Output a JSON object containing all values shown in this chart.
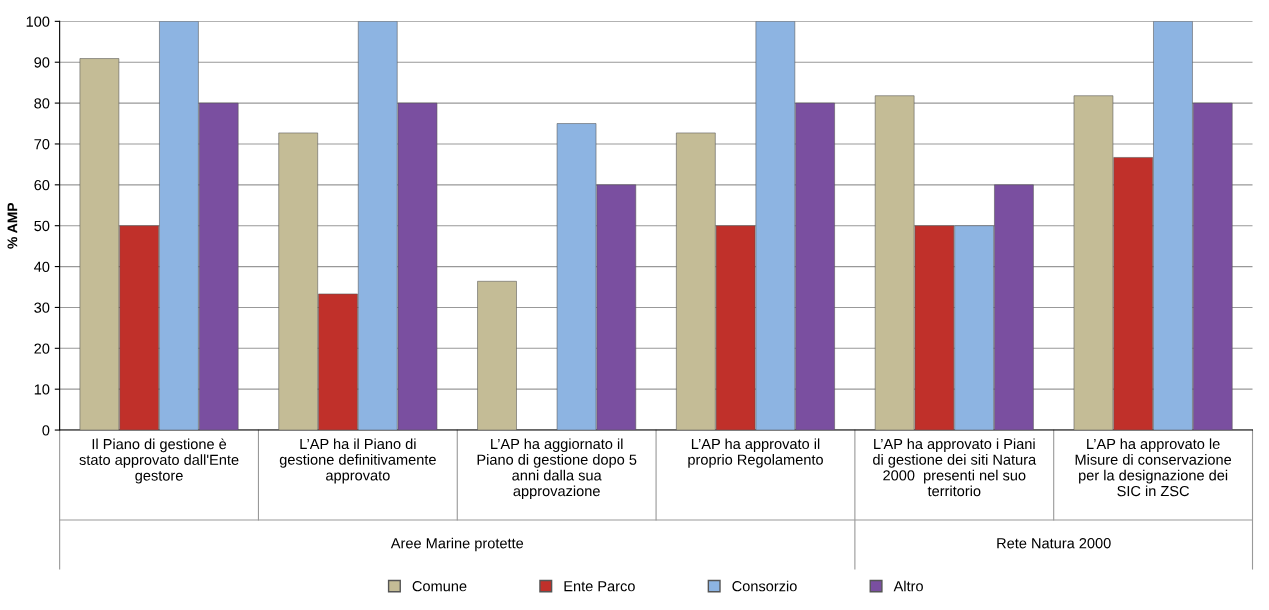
{
  "chart_data": {
    "type": "bar",
    "ylabel": "% AMP",
    "categories": [
      "Il Piano di gestione è\nstato approvato dall'Ente\ngestore",
      "L’AP ha il Piano di\ngestione definitivamente\napprovato",
      "L’AP ha aggiornato il\nPiano di gestione dopo 5\nanni dalla sua\napprovazione",
      "L’AP ha approvato il\nproprio Regolamento",
      "L’AP ha approvato i Piani\ndi gestione dei siti Natura\n2000  presenti nel suo\nterritorio",
      "L’AP ha approvato le\nMisure di conservazione\nper la designazione dei\nSIC in ZSC"
    ],
    "series": [
      {
        "name": "Comune",
        "color": "#c4bc96",
        "values": [
          90.9,
          72.7,
          36.4,
          72.7,
          81.8,
          81.8
        ]
      },
      {
        "name": "Ente Parco",
        "color": "#c0302a",
        "values": [
          50,
          33.3,
          null,
          50,
          50,
          66.7
        ]
      },
      {
        "name": "Consorzio",
        "color": "#8db4e2",
        "values": [
          100,
          100,
          75,
          100,
          50,
          100
        ]
      },
      {
        "name": "Altro",
        "color": "#7a4fa0",
        "values": [
          80,
          80,
          60,
          80,
          60,
          80
        ]
      }
    ],
    "annotations": [
      "Aree Marine protette",
      "Rete Natura 2000"
    ],
    "ylim": [
      0,
      100
    ],
    "yticks": [
      0,
      10,
      20,
      30,
      40,
      50,
      60,
      70,
      80,
      90,
      100
    ],
    "grid": "y",
    "legend": "bottom"
  }
}
